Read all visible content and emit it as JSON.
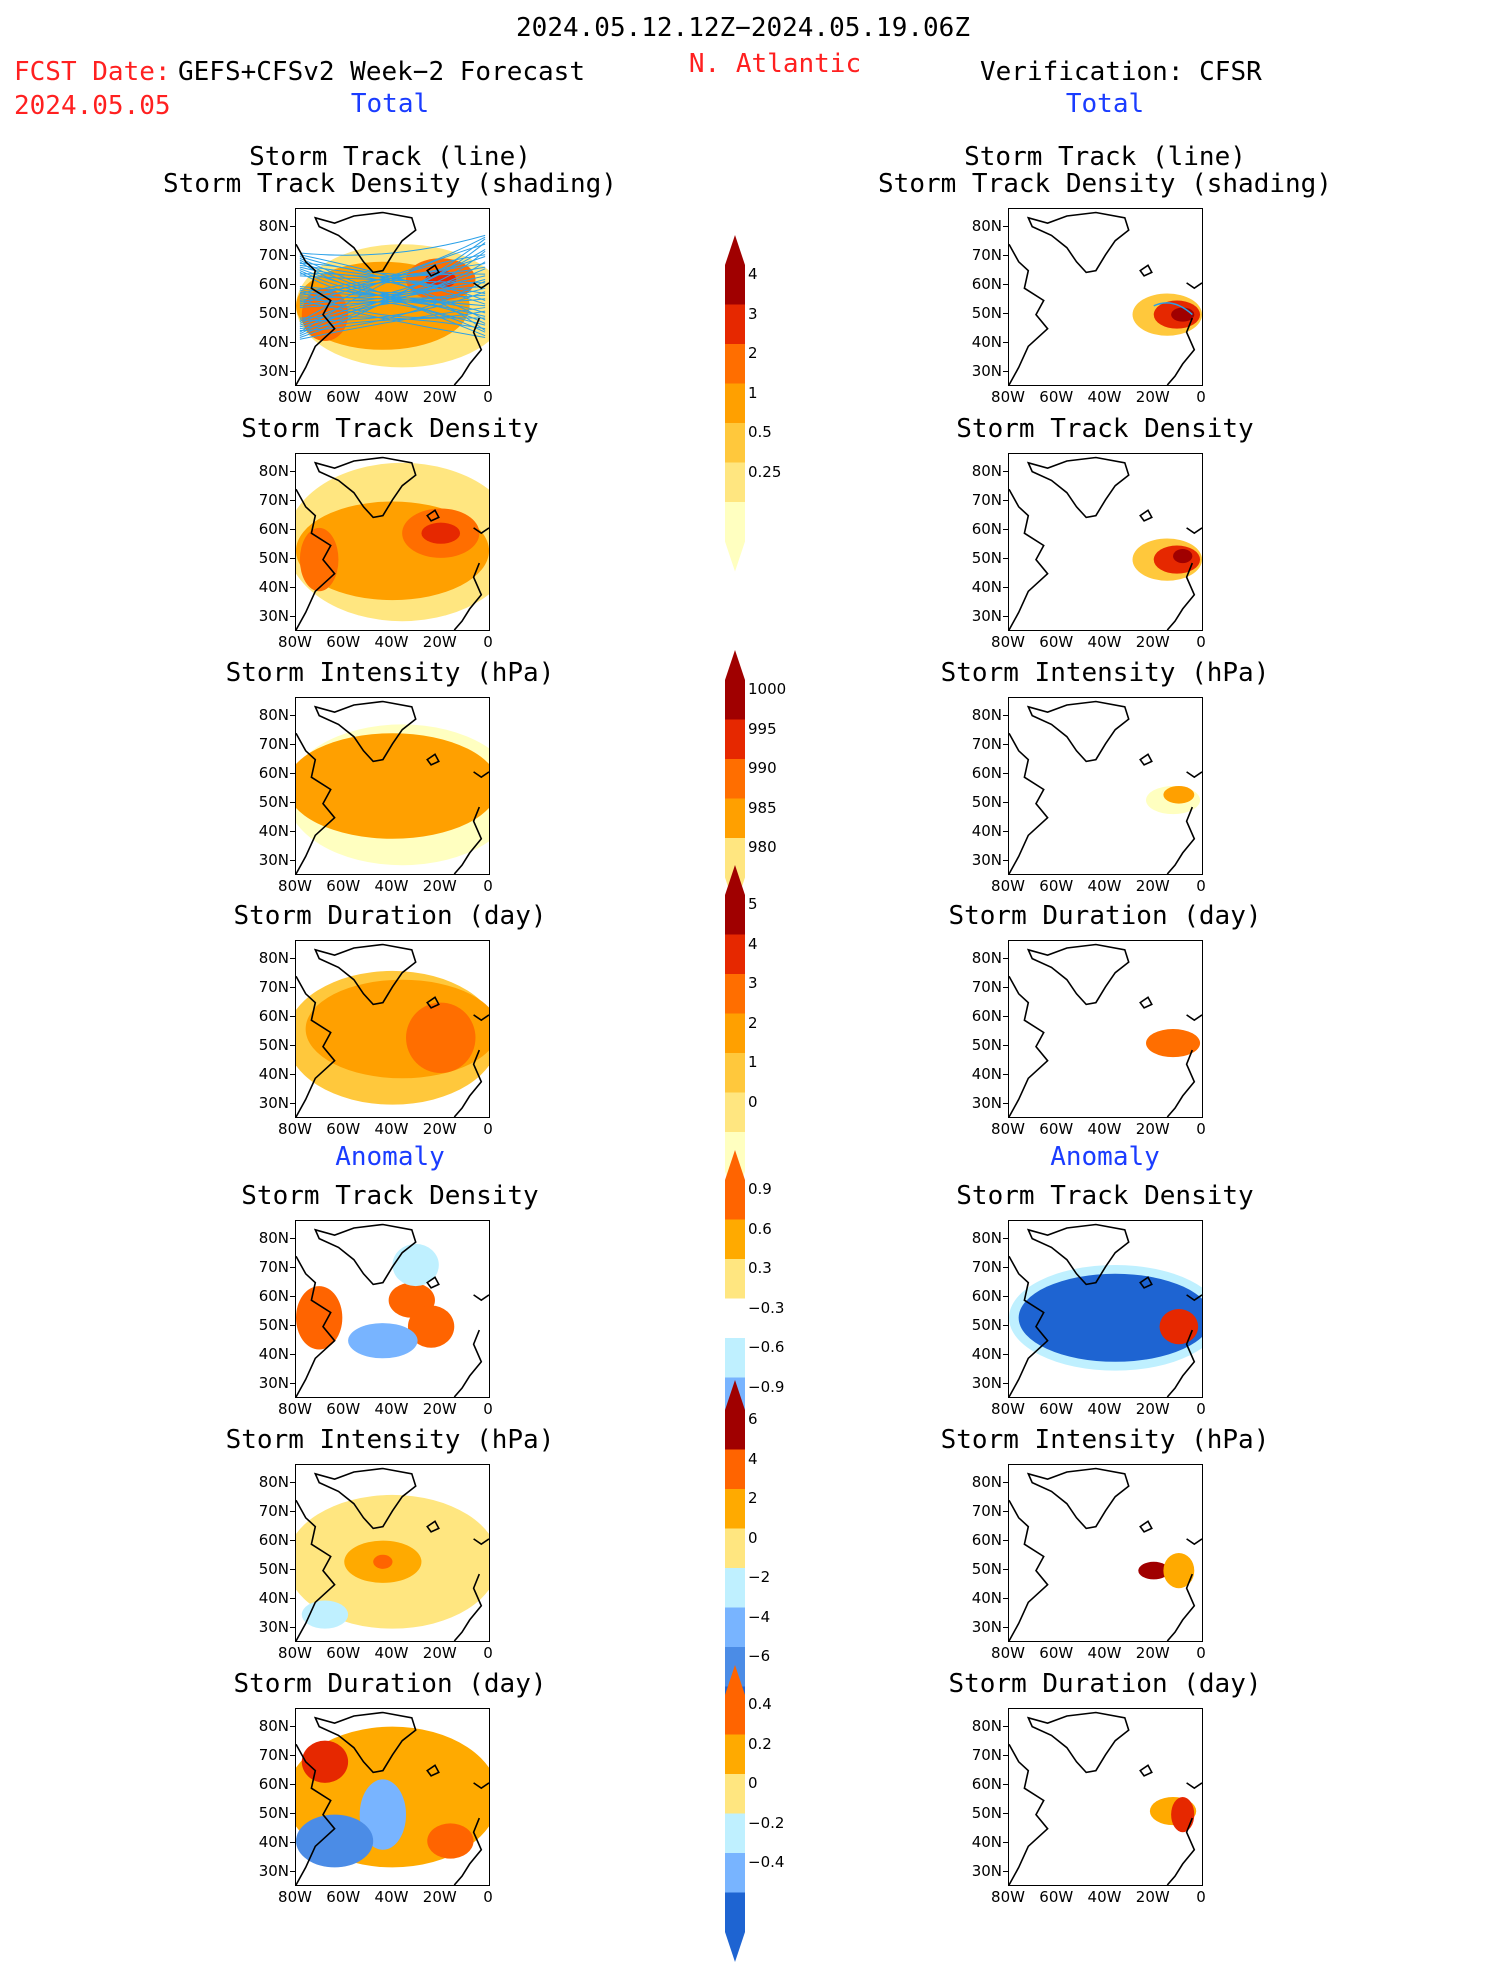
{
  "header": {
    "date_range": "2024.05.12.12Z−2024.05.19.06Z",
    "region": "N. Atlantic",
    "fcst_label": "FCST Date:",
    "fcst_source": "GEFS+CFSv2 Week−2 Forecast",
    "fcst_date": "2024.05.05",
    "verification": "Verification: CFSR",
    "left_total": "Total",
    "right_total": "Total",
    "left_anomaly": "Anomaly",
    "right_anomaly": "Anomaly"
  },
  "axes": {
    "lat_labels": [
      "80N",
      "70N",
      "60N",
      "50N",
      "40N",
      "30N"
    ],
    "lon_labels": [
      "80W",
      "60W",
      "40W",
      "20W",
      "0"
    ]
  },
  "colors": {
    "total_scale": [
      "#ffffc0",
      "#ffe680",
      "#ffc83c",
      "#ffa000",
      "#ff6e00",
      "#e62800",
      "#a00000"
    ],
    "anom_warm": [
      "#ffe680",
      "#ffaa00",
      "#ff6400",
      "#e62800",
      "#a00000"
    ],
    "anom_cold": [
      "#bff0ff",
      "#a0d2ff",
      "#78b4ff",
      "#4b8ce6",
      "#1e64d2"
    ],
    "track_line": "#2aa0e8"
  },
  "colorbars": [
    {
      "id": "cb-density",
      "labels": [
        "4",
        "3",
        "2",
        "1",
        "0.5",
        "0.25"
      ]
    },
    {
      "id": "cb-intensity",
      "labels": [
        "1000",
        "995",
        "990",
        "985",
        "980"
      ]
    },
    {
      "id": "cb-duration",
      "labels": [
        "5",
        "4",
        "3",
        "2",
        "1",
        "0"
      ]
    },
    {
      "id": "cb-anom-density",
      "labels": [
        "0.9",
        "0.6",
        "0.3",
        "−0.3",
        "−0.6",
        "−0.9"
      ]
    },
    {
      "id": "cb-anom-intensity",
      "labels": [
        "6",
        "4",
        "2",
        "0",
        "−2",
        "−4",
        "−6"
      ]
    },
    {
      "id": "cb-anom-duration",
      "labels": [
        "0.4",
        "0.2",
        "0",
        "−0.2",
        "−0.4"
      ]
    }
  ],
  "panels": {
    "left": [
      {
        "title1": "Storm Track (line)",
        "title2": "Storm Track Density (shading)"
      },
      {
        "title1": "Storm Track Density",
        "title2": ""
      },
      {
        "title1": "Storm Intensity (hPa)",
        "title2": ""
      },
      {
        "title1": "Storm Duration (day)",
        "title2": ""
      },
      {
        "title1": "Storm Track Density",
        "title2": ""
      },
      {
        "title1": "Storm Intensity (hPa)",
        "title2": ""
      },
      {
        "title1": "Storm Duration (day)",
        "title2": ""
      }
    ],
    "right": [
      {
        "title1": "Storm Track (line)",
        "title2": "Storm Track Density (shading)"
      },
      {
        "title1": "Storm Track Density",
        "title2": ""
      },
      {
        "title1": "Storm Intensity (hPa)",
        "title2": ""
      },
      {
        "title1": "Storm Duration (day)",
        "title2": ""
      },
      {
        "title1": "Storm Track Density",
        "title2": ""
      },
      {
        "title1": "Storm Intensity (hPa)",
        "title2": ""
      },
      {
        "title1": "Storm Duration (day)",
        "title2": ""
      }
    ]
  },
  "chart_data": [
    {
      "type": "heatmap",
      "variable": "Storm Track Density",
      "scale": [
        0.25,
        0.5,
        1,
        2,
        3,
        4
      ]
    },
    {
      "type": "heatmap",
      "variable": "Storm Intensity (hPa)",
      "scale": [
        1000,
        995,
        990,
        985,
        980
      ]
    },
    {
      "type": "heatmap",
      "variable": "Storm Duration (day)",
      "scale": [
        0,
        1,
        2,
        3,
        4,
        5
      ]
    },
    {
      "type": "heatmap",
      "variable": "Storm Track Density anomaly",
      "scale": [
        -0.9,
        -0.6,
        -0.3,
        0.3,
        0.6,
        0.9
      ]
    },
    {
      "type": "heatmap",
      "variable": "Storm Intensity anomaly (hPa)",
      "scale": [
        -6,
        -4,
        -2,
        0,
        2,
        4,
        6
      ]
    },
    {
      "type": "heatmap",
      "variable": "Storm Duration anomaly (day)",
      "scale": [
        -0.4,
        -0.2,
        0,
        0.2,
        0.4
      ]
    }
  ]
}
